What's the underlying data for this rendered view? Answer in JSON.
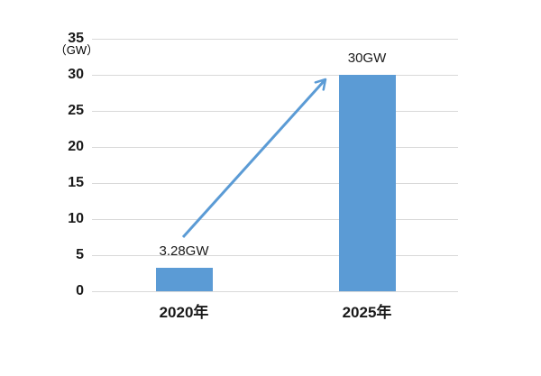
{
  "chart_data": {
    "type": "bar",
    "title": "",
    "xlabel": "",
    "ylabel": "GW",
    "unit_label": "（GW）",
    "categories": [
      "2020年",
      "2025年"
    ],
    "values": [
      3.28,
      30
    ],
    "value_labels": [
      "3.28GW",
      "30GW"
    ],
    "y_ticks": [
      0,
      5,
      10,
      15,
      20,
      25,
      30,
      35
    ],
    "ylim": [
      0,
      35
    ],
    "grid": "horizontal",
    "legend": "none",
    "bar_color": "#5B9BD5",
    "gridline_color": "#D9D9D9",
    "text_color": "#1a1a1a",
    "annotations": [
      {
        "type": "arrow",
        "from_category": "2020年",
        "to_category": "2025年",
        "color": "#5B9BD5"
      }
    ]
  }
}
